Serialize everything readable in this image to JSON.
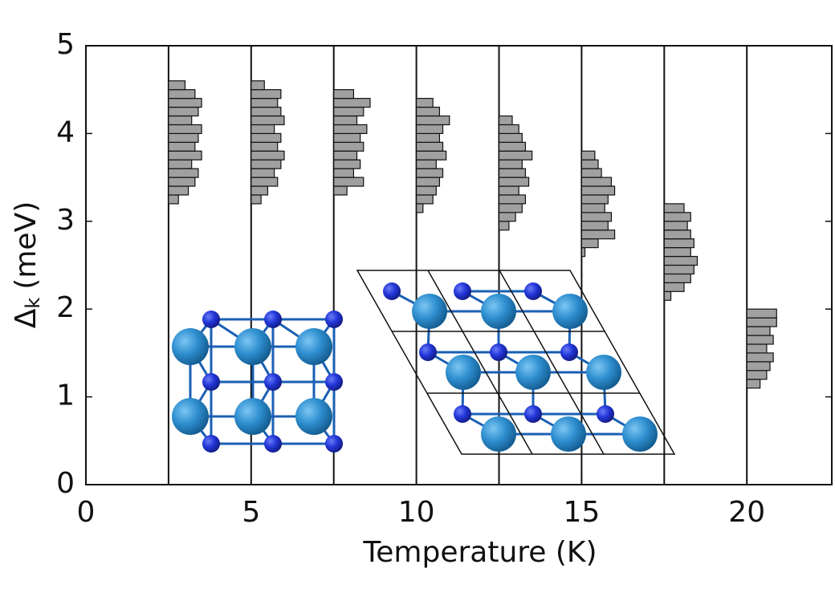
{
  "chart_data": {
    "type": "histogram",
    "xlabel": "Temperature (K)",
    "ylabel": [
      "Δ",
      "k",
      "(meV)"
    ],
    "xlim": [
      0,
      22.57
    ],
    "ylim": [
      0,
      5
    ],
    "xticks": [
      0,
      5,
      10,
      15,
      20
    ],
    "yticks": [
      0,
      1,
      2,
      3,
      4,
      5
    ],
    "grid": false,
    "color": "#a0a0a0",
    "x": [
      2.5,
      5,
      7.5,
      10,
      12.5,
      15,
      17.5,
      20
    ],
    "distributions": [
      {
        "bins": [
          3.2,
          3.3,
          3.4,
          3.5,
          3.6,
          3.7,
          3.8,
          3.9,
          4.0,
          4.1,
          4.2,
          4.3,
          4.4,
          4.5,
          4.6
        ],
        "counts": [
          0.3,
          0.6,
          0.8,
          0.9,
          0.7,
          1.0,
          0.8,
          0.9,
          1.0,
          0.7,
          0.9,
          1.0,
          0.8,
          0.5
        ]
      },
      {
        "bins": [
          3.2,
          3.3,
          3.4,
          3.5,
          3.6,
          3.7,
          3.8,
          3.9,
          4.0,
          4.1,
          4.2,
          4.3,
          4.4,
          4.5,
          4.6
        ],
        "counts": [
          0.3,
          0.5,
          0.8,
          0.7,
          0.9,
          1.0,
          0.8,
          0.9,
          0.7,
          1.0,
          0.9,
          0.8,
          0.9,
          0.4
        ]
      },
      {
        "bins": [
          3.3,
          3.4,
          3.5,
          3.6,
          3.7,
          3.8,
          3.9,
          4.0,
          4.1,
          4.2,
          4.3,
          4.4,
          4.5
        ],
        "counts": [
          0.4,
          0.9,
          0.6,
          0.8,
          0.7,
          0.9,
          0.8,
          1.0,
          0.7,
          0.9,
          1.1,
          0.6
        ]
      },
      {
        "bins": [
          3.1,
          3.2,
          3.3,
          3.4,
          3.5,
          3.6,
          3.7,
          3.8,
          3.9,
          4.0,
          4.1,
          4.2,
          4.3,
          4.4
        ],
        "counts": [
          0.2,
          0.5,
          0.6,
          0.7,
          0.8,
          0.6,
          0.9,
          0.8,
          0.7,
          0.8,
          1.0,
          0.7,
          0.5
        ]
      },
      {
        "bins": [
          2.9,
          3.0,
          3.1,
          3.2,
          3.3,
          3.4,
          3.5,
          3.6,
          3.7,
          3.8,
          3.9,
          4.0,
          4.1,
          4.2
        ],
        "counts": [
          0.3,
          0.5,
          0.7,
          0.8,
          0.6,
          0.9,
          0.8,
          0.7,
          1.0,
          0.8,
          0.7,
          0.6,
          0.4
        ]
      },
      {
        "bins": [
          2.6,
          2.7,
          2.8,
          2.9,
          3.0,
          3.1,
          3.2,
          3.3,
          3.4,
          3.5,
          3.6,
          3.7,
          3.8
        ],
        "counts": [
          0.1,
          0.5,
          1.0,
          0.8,
          0.9,
          0.7,
          0.8,
          1.0,
          0.9,
          0.6,
          0.5,
          0.4
        ]
      },
      {
        "bins": [
          2.1,
          2.2,
          2.3,
          2.4,
          2.5,
          2.6,
          2.7,
          2.8,
          2.9,
          3.0,
          3.1,
          3.2
        ],
        "counts": [
          0.2,
          0.6,
          0.8,
          0.9,
          1.0,
          0.8,
          0.9,
          0.8,
          0.7,
          0.8,
          0.6
        ]
      },
      {
        "bins": [
          1.1,
          1.2,
          1.3,
          1.4,
          1.5,
          1.6,
          1.7,
          1.8,
          1.9,
          2.0
        ],
        "counts": [
          0.4,
          0.6,
          0.7,
          0.8,
          0.6,
          0.8,
          0.7,
          0.9,
          0.9
        ]
      }
    ]
  }
}
